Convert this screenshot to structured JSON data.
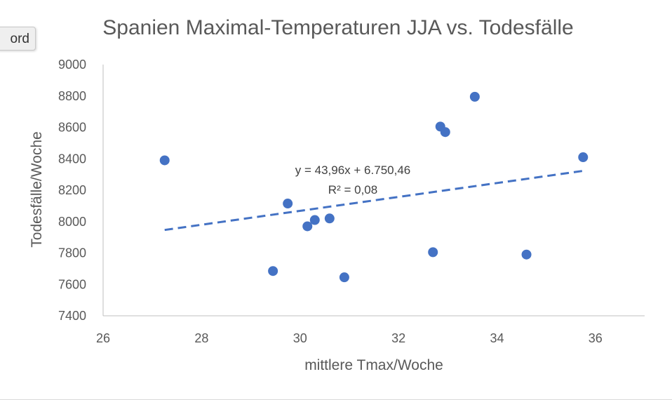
{
  "overlay": {
    "word_tab_label": "ord"
  },
  "chart_data": {
    "type": "scatter",
    "title": "Spanien Maximal-Temperaturen JJA vs. Todesfälle",
    "xlabel": "mittlere Tmax/Woche",
    "ylabel": "Todesfälle/Woche",
    "xlim": [
      26,
      37
    ],
    "ylim": [
      7400,
      9000
    ],
    "x_ticks": [
      "26",
      "28",
      "30",
      "32",
      "34",
      "36"
    ],
    "y_ticks": [
      "7400",
      "7600",
      "7800",
      "8000",
      "8200",
      "8400",
      "8600",
      "8800",
      "9000"
    ],
    "grid": false,
    "marker_color": "#4472c4",
    "points": [
      {
        "x": 27.25,
        "y": 8390
      },
      {
        "x": 29.45,
        "y": 7685
      },
      {
        "x": 29.75,
        "y": 8115
      },
      {
        "x": 30.15,
        "y": 7970
      },
      {
        "x": 30.3,
        "y": 8010
      },
      {
        "x": 30.6,
        "y": 8020
      },
      {
        "x": 30.9,
        "y": 7645
      },
      {
        "x": 32.7,
        "y": 7805
      },
      {
        "x": 32.85,
        "y": 8605
      },
      {
        "x": 32.95,
        "y": 8570
      },
      {
        "x": 33.55,
        "y": 8795
      },
      {
        "x": 34.6,
        "y": 7790
      },
      {
        "x": 35.75,
        "y": 8410
      }
    ],
    "trendline": {
      "type": "linear",
      "style": "dashed",
      "color": "#4472c4",
      "x_range": [
        27.25,
        35.75
      ],
      "equation": "y = 43,96x + 6.750,46",
      "r_squared": "R² = 0,08"
    }
  }
}
